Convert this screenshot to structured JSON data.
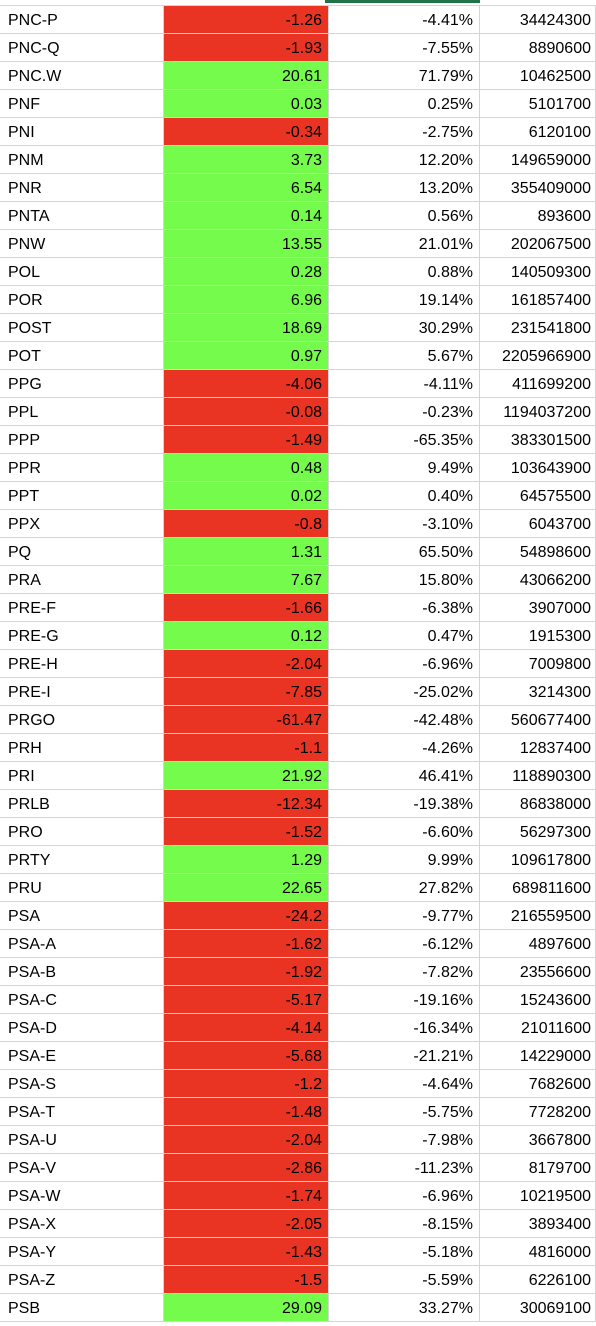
{
  "colors": {
    "negative": "#e93323",
    "positive": "#75fb4c",
    "accent": "#207346",
    "grid": "#d4d4d4"
  },
  "rows": [
    {
      "symbol": "PNC-P",
      "change": "-1.26",
      "pct": "-4.41%",
      "volume": "34424300",
      "sign": "neg"
    },
    {
      "symbol": "PNC-Q",
      "change": "-1.93",
      "pct": "-7.55%",
      "volume": "8890600",
      "sign": "neg"
    },
    {
      "symbol": "PNC.W",
      "change": "20.61",
      "pct": "71.79%",
      "volume": "10462500",
      "sign": "pos"
    },
    {
      "symbol": "PNF",
      "change": "0.03",
      "pct": "0.25%",
      "volume": "5101700",
      "sign": "pos"
    },
    {
      "symbol": "PNI",
      "change": "-0.34",
      "pct": "-2.75%",
      "volume": "6120100",
      "sign": "neg"
    },
    {
      "symbol": "PNM",
      "change": "3.73",
      "pct": "12.20%",
      "volume": "149659000",
      "sign": "pos"
    },
    {
      "symbol": "PNR",
      "change": "6.54",
      "pct": "13.20%",
      "volume": "355409000",
      "sign": "pos"
    },
    {
      "symbol": "PNTA",
      "change": "0.14",
      "pct": "0.56%",
      "volume": "893600",
      "sign": "pos"
    },
    {
      "symbol": "PNW",
      "change": "13.55",
      "pct": "21.01%",
      "volume": "202067500",
      "sign": "pos"
    },
    {
      "symbol": "POL",
      "change": "0.28",
      "pct": "0.88%",
      "volume": "140509300",
      "sign": "pos"
    },
    {
      "symbol": "POR",
      "change": "6.96",
      "pct": "19.14%",
      "volume": "161857400",
      "sign": "pos"
    },
    {
      "symbol": "POST",
      "change": "18.69",
      "pct": "30.29%",
      "volume": "231541800",
      "sign": "pos"
    },
    {
      "symbol": "POT",
      "change": "0.97",
      "pct": "5.67%",
      "volume": "2205966900",
      "sign": "pos"
    },
    {
      "symbol": "PPG",
      "change": "-4.06",
      "pct": "-4.11%",
      "volume": "411699200",
      "sign": "neg"
    },
    {
      "symbol": "PPL",
      "change": "-0.08",
      "pct": "-0.23%",
      "volume": "1194037200",
      "sign": "neg"
    },
    {
      "symbol": "PPP",
      "change": "-1.49",
      "pct": "-65.35%",
      "volume": "383301500",
      "sign": "neg"
    },
    {
      "symbol": "PPR",
      "change": "0.48",
      "pct": "9.49%",
      "volume": "103643900",
      "sign": "pos"
    },
    {
      "symbol": "PPT",
      "change": "0.02",
      "pct": "0.40%",
      "volume": "64575500",
      "sign": "pos"
    },
    {
      "symbol": "PPX",
      "change": "-0.8",
      "pct": "-3.10%",
      "volume": "6043700",
      "sign": "neg"
    },
    {
      "symbol": "PQ",
      "change": "1.31",
      "pct": "65.50%",
      "volume": "54898600",
      "sign": "pos"
    },
    {
      "symbol": "PRA",
      "change": "7.67",
      "pct": "15.80%",
      "volume": "43066200",
      "sign": "pos"
    },
    {
      "symbol": "PRE-F",
      "change": "-1.66",
      "pct": "-6.38%",
      "volume": "3907000",
      "sign": "neg"
    },
    {
      "symbol": "PRE-G",
      "change": "0.12",
      "pct": "0.47%",
      "volume": "1915300",
      "sign": "pos"
    },
    {
      "symbol": "PRE-H",
      "change": "-2.04",
      "pct": "-6.96%",
      "volume": "7009800",
      "sign": "neg"
    },
    {
      "symbol": "PRE-I",
      "change": "-7.85",
      "pct": "-25.02%",
      "volume": "3214300",
      "sign": "neg"
    },
    {
      "symbol": "PRGO",
      "change": "-61.47",
      "pct": "-42.48%",
      "volume": "560677400",
      "sign": "neg"
    },
    {
      "symbol": "PRH",
      "change": "-1.1",
      "pct": "-4.26%",
      "volume": "12837400",
      "sign": "neg"
    },
    {
      "symbol": "PRI",
      "change": "21.92",
      "pct": "46.41%",
      "volume": "118890300",
      "sign": "pos"
    },
    {
      "symbol": "PRLB",
      "change": "-12.34",
      "pct": "-19.38%",
      "volume": "86838000",
      "sign": "neg"
    },
    {
      "symbol": "PRO",
      "change": "-1.52",
      "pct": "-6.60%",
      "volume": "56297300",
      "sign": "neg"
    },
    {
      "symbol": "PRTY",
      "change": "1.29",
      "pct": "9.99%",
      "volume": "109617800",
      "sign": "pos"
    },
    {
      "symbol": "PRU",
      "change": "22.65",
      "pct": "27.82%",
      "volume": "689811600",
      "sign": "pos"
    },
    {
      "symbol": "PSA",
      "change": "-24.2",
      "pct": "-9.77%",
      "volume": "216559500",
      "sign": "neg"
    },
    {
      "symbol": "PSA-A",
      "change": "-1.62",
      "pct": "-6.12%",
      "volume": "4897600",
      "sign": "neg"
    },
    {
      "symbol": "PSA-B",
      "change": "-1.92",
      "pct": "-7.82%",
      "volume": "23556600",
      "sign": "neg"
    },
    {
      "symbol": "PSA-C",
      "change": "-5.17",
      "pct": "-19.16%",
      "volume": "15243600",
      "sign": "neg"
    },
    {
      "symbol": "PSA-D",
      "change": "-4.14",
      "pct": "-16.34%",
      "volume": "21011600",
      "sign": "neg"
    },
    {
      "symbol": "PSA-E",
      "change": "-5.68",
      "pct": "-21.21%",
      "volume": "14229000",
      "sign": "neg"
    },
    {
      "symbol": "PSA-S",
      "change": "-1.2",
      "pct": "-4.64%",
      "volume": "7682600",
      "sign": "neg"
    },
    {
      "symbol": "PSA-T",
      "change": "-1.48",
      "pct": "-5.75%",
      "volume": "7728200",
      "sign": "neg"
    },
    {
      "symbol": "PSA-U",
      "change": "-2.04",
      "pct": "-7.98%",
      "volume": "3667800",
      "sign": "neg"
    },
    {
      "symbol": "PSA-V",
      "change": "-2.86",
      "pct": "-11.23%",
      "volume": "8179700",
      "sign": "neg"
    },
    {
      "symbol": "PSA-W",
      "change": "-1.74",
      "pct": "-6.96%",
      "volume": "10219500",
      "sign": "neg"
    },
    {
      "symbol": "PSA-X",
      "change": "-2.05",
      "pct": "-8.15%",
      "volume": "3893400",
      "sign": "neg"
    },
    {
      "symbol": "PSA-Y",
      "change": "-1.43",
      "pct": "-5.18%",
      "volume": "4816000",
      "sign": "neg"
    },
    {
      "symbol": "PSA-Z",
      "change": "-1.5",
      "pct": "-5.59%",
      "volume": "6226100",
      "sign": "neg"
    },
    {
      "symbol": "PSB",
      "change": "29.09",
      "pct": "33.27%",
      "volume": "30069100",
      "sign": "pos"
    }
  ]
}
